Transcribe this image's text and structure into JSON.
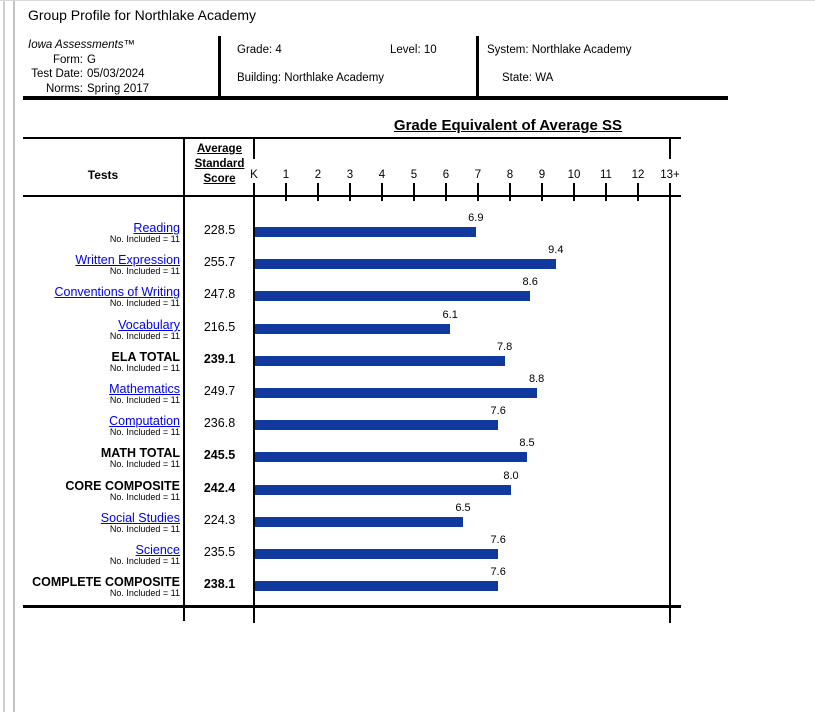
{
  "page": {
    "title": "Group Profile for Northlake Academy"
  },
  "header": {
    "product": "Iowa Assessments™",
    "left_fields": [
      {
        "label": "Form:",
        "value": "G"
      },
      {
        "label": "Test Date:",
        "value": "05/03/2024"
      },
      {
        "label": "Norms:",
        "value": "Spring 2017"
      }
    ],
    "grade": "Grade: 4",
    "level": "Level: 10",
    "building": "Building: Northlake Academy",
    "system": "System: Northlake Academy",
    "state": "State: WA"
  },
  "chart": {
    "title": "Grade Equivalent of Average SS",
    "tests_header": "Tests",
    "score_header_lines": [
      "Average",
      "Standard",
      "Score"
    ],
    "axis_labels": [
      "K",
      "1",
      "2",
      "3",
      "4",
      "5",
      "6",
      "7",
      "8",
      "9",
      "10",
      "11",
      "12",
      "13+"
    ]
  },
  "rows": [
    {
      "name": "Reading",
      "no_included": "No. Included = 11",
      "avg_ss": "228.5",
      "ge": "6.9"
    },
    {
      "name": "Written Expression",
      "no_included": "No. Included = 11",
      "avg_ss": "255.7",
      "ge": "9.4"
    },
    {
      "name": "Conventions of Writing",
      "no_included": "No. Included = 11",
      "avg_ss": "247.8",
      "ge": "8.6"
    },
    {
      "name": "Vocabulary",
      "no_included": "No. Included = 11",
      "avg_ss": "216.5",
      "ge": "6.1"
    },
    {
      "name": "ELA TOTAL",
      "no_included": "No. Included = 11",
      "avg_ss": "239.1",
      "ge": "7.8"
    },
    {
      "name": "Mathematics",
      "no_included": "No. Included = 11",
      "avg_ss": "249.7",
      "ge": "8.8"
    },
    {
      "name": "Computation",
      "no_included": "No. Included = 11",
      "avg_ss": "236.8",
      "ge": "7.6"
    },
    {
      "name": "MATH TOTAL",
      "no_included": "No. Included = 11",
      "avg_ss": "245.5",
      "ge": "8.5"
    },
    {
      "name": "CORE COMPOSITE",
      "no_included": "No. Included = 11",
      "avg_ss": "242.4",
      "ge": "8.0"
    },
    {
      "name": "Social Studies",
      "no_included": "No. Included = 11",
      "avg_ss": "224.3",
      "ge": "6.5"
    },
    {
      "name": "Science",
      "no_included": "No. Included = 11",
      "avg_ss": "235.5",
      "ge": "7.6"
    },
    {
      "name": "COMPLETE COMPOSITE",
      "no_included": "No. Included = 11",
      "avg_ss": "238.1",
      "ge": "7.6"
    }
  ],
  "chart_data": {
    "type": "bar",
    "orientation": "horizontal",
    "title": "Grade Equivalent of Average SS",
    "categories": [
      "Reading",
      "Written Expression",
      "Conventions of Writing",
      "Vocabulary",
      "ELA TOTAL",
      "Mathematics",
      "Computation",
      "MATH TOTAL",
      "CORE COMPOSITE",
      "Social Studies",
      "Science",
      "COMPLETE COMPOSITE"
    ],
    "values": [
      6.9,
      9.4,
      8.6,
      6.1,
      7.8,
      8.8,
      7.6,
      8.5,
      8.0,
      6.5,
      7.6,
      7.6
    ],
    "avg_standard_scores": [
      228.5,
      255.7,
      247.8,
      216.5,
      239.1,
      249.7,
      236.8,
      245.5,
      242.4,
      224.3,
      235.5,
      238.1
    ],
    "n_included": 11,
    "xlabel": "Grade Equivalent",
    "ylabel": "Tests",
    "x_tick_labels": [
      "K",
      "1",
      "2",
      "3",
      "4",
      "5",
      "6",
      "7",
      "8",
      "9",
      "10",
      "11",
      "12",
      "13+"
    ],
    "xlim": [
      0,
      13
    ],
    "grid": false,
    "legend": false,
    "bar_color": "#11389d"
  },
  "colors": {
    "bar": "#11389d",
    "link": "#0000ee",
    "line": "#000000"
  }
}
